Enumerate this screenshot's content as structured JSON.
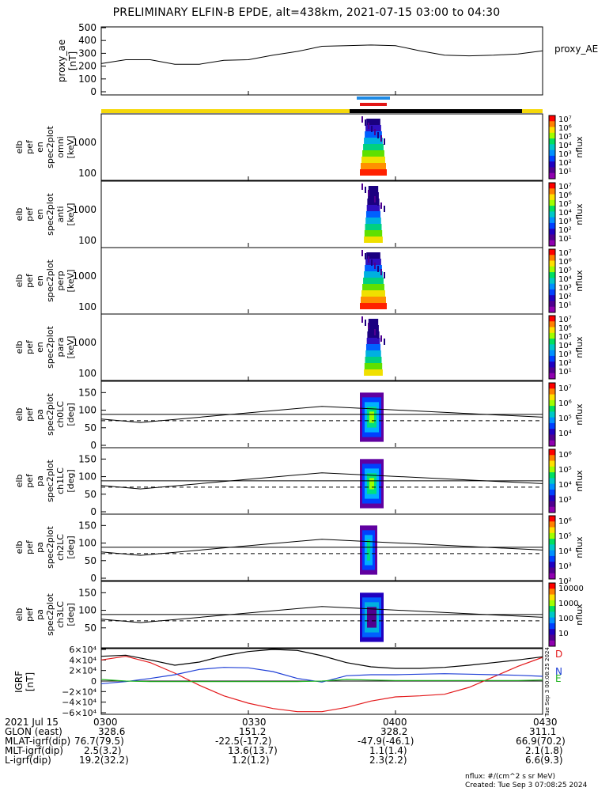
{
  "title": "PRELIMINARY ELFIN-B EPDE, alt=438km, 2021-07-15 03:00 to 04:30",
  "colors": {
    "trace": "#000000",
    "blue_bar": "#1e8be6",
    "red_bar": "#e21616",
    "sunlit_bar": "#f5d80a",
    "shadow_bar": "#000000",
    "grf_d": "#e31a1c",
    "grf_n": "#1f3fd6",
    "grf_e": "#22b422"
  },
  "top_panel": {
    "ylabel": "proxy_ae\n[nT]",
    "legend": "proxy_AE",
    "yticks": [
      "500",
      "400",
      "300",
      "200",
      "100",
      "0"
    ]
  },
  "spectro_panels": [
    {
      "ylabel": [
        "elb",
        "pef",
        "en",
        "spec2plot",
        "omni",
        "[keV]"
      ],
      "yticks": [
        "1000",
        "100"
      ],
      "zlabel": "nflux",
      "cbar_ticks": [
        "10⁷",
        "10⁶",
        "10⁵",
        "10⁴",
        "10³",
        "10²",
        "10¹"
      ]
    },
    {
      "ylabel": [
        "elb",
        "pef",
        "en",
        "spec2plot",
        "anti",
        "[keV]"
      ],
      "yticks": [
        "1000",
        "100"
      ],
      "zlabel": "nflux",
      "cbar_ticks": [
        "10⁷",
        "10⁶",
        "10⁵",
        "10⁴",
        "10³",
        "10²",
        "10¹"
      ]
    },
    {
      "ylabel": [
        "elb",
        "pef",
        "en",
        "spec2plot",
        "perp",
        "[keV]"
      ],
      "yticks": [
        "1000",
        "100"
      ],
      "zlabel": "nflux",
      "cbar_ticks": [
        "10⁷",
        "10⁶",
        "10⁵",
        "10⁴",
        "10³",
        "10²",
        "10¹"
      ]
    },
    {
      "ylabel": [
        "elb",
        "pef",
        "en",
        "spec2plot",
        "para",
        "[keV]"
      ],
      "yticks": [
        "1000",
        "100"
      ],
      "zlabel": "nflux",
      "cbar_ticks": [
        "10⁷",
        "10⁶",
        "10⁵",
        "10⁴",
        "10³",
        "10²",
        "10¹"
      ]
    }
  ],
  "pa_panels": [
    {
      "ylabel": [
        "elb",
        "pef",
        "pa",
        "spec2plot",
        "ch0LC",
        "[deg]"
      ],
      "yticks": [
        "150",
        "100",
        "50",
        "0"
      ],
      "zlabel": "nflux",
      "cbar_ticks": [
        "10⁷",
        "10⁶",
        "10⁵",
        "10⁴"
      ]
    },
    {
      "ylabel": [
        "elb",
        "pef",
        "pa",
        "spec2plot",
        "ch1LC",
        "[deg]"
      ],
      "yticks": [
        "150",
        "100",
        "50",
        "0"
      ],
      "zlabel": "nflux",
      "cbar_ticks": [
        "10⁶",
        "10⁵",
        "10⁴",
        "10³"
      ]
    },
    {
      "ylabel": [
        "elb",
        "pef",
        "pa",
        "spec2plot",
        "ch2LC",
        "[deg]"
      ],
      "yticks": [
        "150",
        "100",
        "50",
        "0"
      ],
      "zlabel": "nflux",
      "cbar_ticks": [
        "10⁶",
        "10⁵",
        "10⁴",
        "10³",
        "10²"
      ]
    },
    {
      "ylabel": [
        "elb",
        "pef",
        "pa",
        "spec2plot",
        "ch3LC",
        "[deg]"
      ],
      "yticks": [
        "150",
        "100",
        "50"
      ],
      "zlabel": "nflux",
      "cbar_ticks": [
        "10000",
        "1000",
        "100",
        "10"
      ]
    }
  ],
  "grf_panel": {
    "ylabel": [
      "IGRF",
      "[nT]"
    ],
    "yticks": [
      "6×10⁴",
      "4×10⁴",
      "2×10⁴",
      "0",
      "−2×10⁴",
      "−4×10⁴",
      "−6×10⁴"
    ],
    "labels": [
      "D",
      "N",
      "E"
    ],
    "side_stamp": "Tue Sep  3 00:08:25 2024"
  },
  "footer": {
    "rows": [
      {
        "label": "2021 Jul 15",
        "values": [
          "0300",
          "0330",
          "0400",
          "0430"
        ]
      },
      {
        "label": "GLON (east)",
        "values": [
          "328.6",
          "151.2",
          "328.2",
          "311.1"
        ]
      },
      {
        "label": "MLAT-igrf(dip)",
        "values": [
          "76.7(79.5)",
          "-22.5(-17.2)",
          "-47.9(-46.1)",
          "66.9(70.2)"
        ]
      },
      {
        "label": "MLT-igrf(dip)",
        "values": [
          "2.5(3.2)",
          "13.6(13.7)",
          "1.1(1.4)",
          "2.1(1.8)"
        ]
      },
      {
        "label": "L-igrf(dip)",
        "values": [
          "19.2(32.2)",
          "1.2(1.2)",
          "2.3(2.2)",
          "6.6(9.3)"
        ]
      }
    ],
    "units_note": "nflux: #/(cm^2 s sr MeV)",
    "created_note": "Created: Tue Sep  3 07:08:25 2024"
  },
  "chart_data": {
    "type": "line",
    "title": "PRELIMINARY ELFIN-B EPDE, alt=438km, 2021-07-15 03:00 to 04:30",
    "x_ticks": [
      "0300",
      "0330",
      "0400",
      "0430"
    ],
    "xlim_minutes_after_0300": [
      0,
      90
    ],
    "series": [
      {
        "name": "proxy_AE",
        "unit": "nT",
        "x_minutes_after_0300": [
          0,
          5,
          10,
          15,
          20,
          25,
          30,
          35,
          40,
          45,
          50,
          55,
          60,
          65,
          70,
          75,
          80,
          85,
          90
        ],
        "values": [
          220,
          250,
          250,
          215,
          215,
          245,
          250,
          285,
          315,
          355,
          360,
          365,
          360,
          320,
          285,
          280,
          285,
          295,
          320
        ]
      },
      {
        "name": "D",
        "unit": "nT",
        "x_minutes_after_0300": [
          0,
          5,
          10,
          15,
          20,
          25,
          30,
          35,
          40,
          45,
          50,
          55,
          60,
          65,
          70,
          75,
          80,
          85,
          90
        ],
        "values": [
          40000,
          47000,
          35000,
          15000,
          -8000,
          -28000,
          -42000,
          -52000,
          -58000,
          -58000,
          -50000,
          -38000,
          -30000,
          -28000,
          -25000,
          -12000,
          8000,
          28000,
          45000
        ]
      },
      {
        "name": "N",
        "unit": "nT",
        "x_minutes_after_0300": [
          0,
          5,
          10,
          15,
          20,
          25,
          30,
          35,
          40,
          45,
          50,
          55,
          60,
          65,
          70,
          75,
          80,
          85,
          90
        ],
        "values": [
          -5000,
          -1000,
          5000,
          12000,
          22000,
          26000,
          25000,
          18000,
          5000,
          -2000,
          10000,
          12000,
          12000,
          13000,
          14000,
          13000,
          12000,
          11000,
          9000
        ]
      },
      {
        "name": "E",
        "unit": "nT",
        "x_minutes_after_0300": [
          0,
          5,
          10,
          15,
          20,
          25,
          30,
          35,
          40,
          45,
          50,
          55,
          60,
          65,
          70,
          75,
          80,
          85,
          90
        ],
        "values": [
          3000,
          0,
          -1000,
          -1000,
          -1000,
          -1000,
          -1000,
          -1000,
          -1000,
          0,
          3000,
          2000,
          1000,
          1000,
          1000,
          1000,
          1000,
          1000,
          2000
        ]
      },
      {
        "name": "total",
        "unit": "nT",
        "x_minutes_after_0300": [
          0,
          5,
          10,
          15,
          20,
          25,
          30,
          35,
          40,
          45,
          50,
          55,
          60,
          65,
          70,
          75,
          80,
          85,
          90
        ],
        "values": [
          47000,
          49000,
          40000,
          30000,
          36000,
          48000,
          56000,
          60000,
          58000,
          48000,
          35000,
          27000,
          24000,
          24000,
          26000,
          30000,
          35000,
          40000,
          46000
        ]
      }
    ],
    "pitch_angle_lines_deg": [
      88,
      70
    ],
    "lc_curve_deg": {
      "x_minutes_after_0300": [
        0,
        8,
        45,
        90
      ],
      "values": [
        75,
        65,
        111,
        80
      ]
    }
  }
}
